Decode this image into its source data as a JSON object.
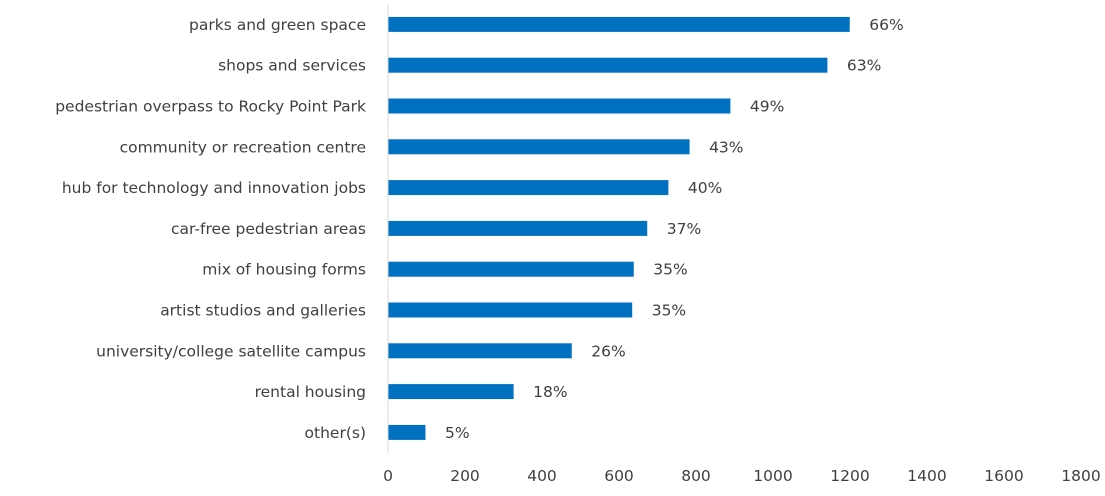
{
  "chart_data": {
    "type": "bar",
    "orientation": "horizontal",
    "categories": [
      "parks and green space",
      "shops and services ",
      "pedestrian overpass to Rocky Point Park",
      "community or recreation centre",
      "hub for technology and innovation jobs",
      "car-free pedestrian areas",
      "mix of housing forms",
      "artist studios and galleries",
      "university/college satellite campus",
      "rental housing",
      "other(s)"
    ],
    "values": [
      1198,
      1140,
      888,
      782,
      727,
      672,
      637,
      633,
      476,
      325,
      96
    ],
    "data_labels": [
      "66%",
      "63%",
      "49%",
      "43%",
      "40%",
      "37%",
      "35%",
      "35%",
      "26%",
      "18%",
      "5%"
    ],
    "xlim": [
      0,
      1800
    ],
    "x_ticks": [
      "0",
      "200",
      "400",
      "600",
      "800",
      "1000",
      "1200",
      "1400",
      "1600",
      "1800"
    ],
    "grid": false,
    "legend": "none",
    "bar_color": "#0070C0",
    "axis_color": "#D9D9D9",
    "text_color": "#404040"
  }
}
